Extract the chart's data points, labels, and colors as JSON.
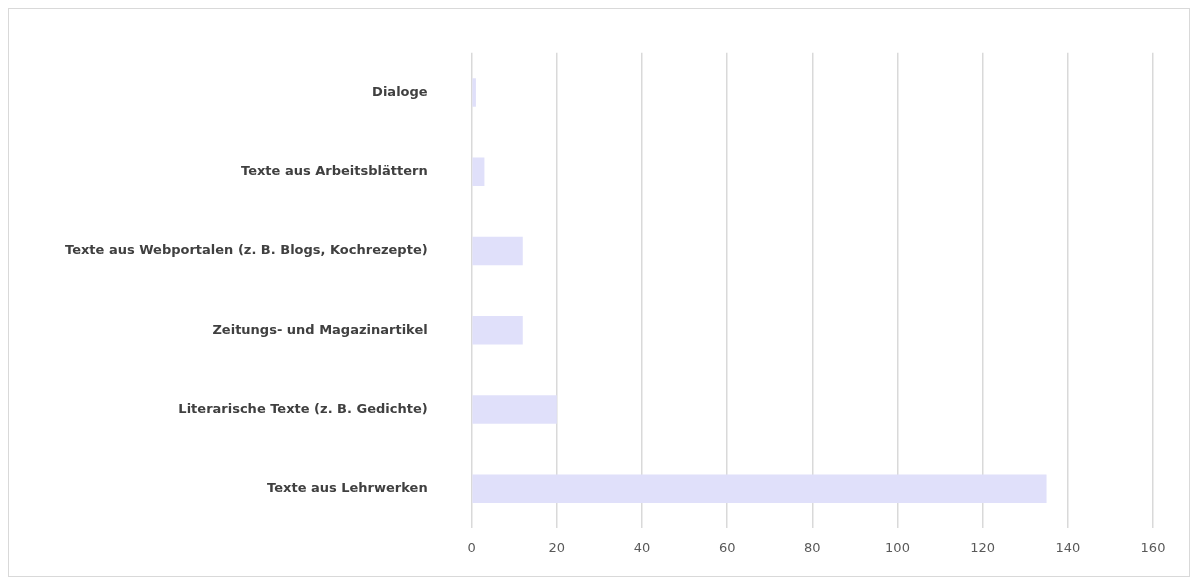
{
  "chart_data": {
    "type": "bar",
    "orientation": "horizontal",
    "categories": [
      "Dialoge",
      "Texte aus Arbeitsblättern",
      "Texte aus Webportalen (z. B. Blogs, Kochrezepte)",
      "Zeitungs- und Magazinartikel",
      "Literarische Texte (z. B. Gedichte)",
      "Texte aus Lehrwerken"
    ],
    "values": [
      1,
      3,
      12,
      12,
      20,
      135
    ],
    "color": "#e0e0fa",
    "xlim": [
      0,
      160
    ],
    "xticks": [
      0,
      20,
      40,
      60,
      80,
      100,
      120,
      140,
      160
    ],
    "grid": "x",
    "legend": false
  }
}
